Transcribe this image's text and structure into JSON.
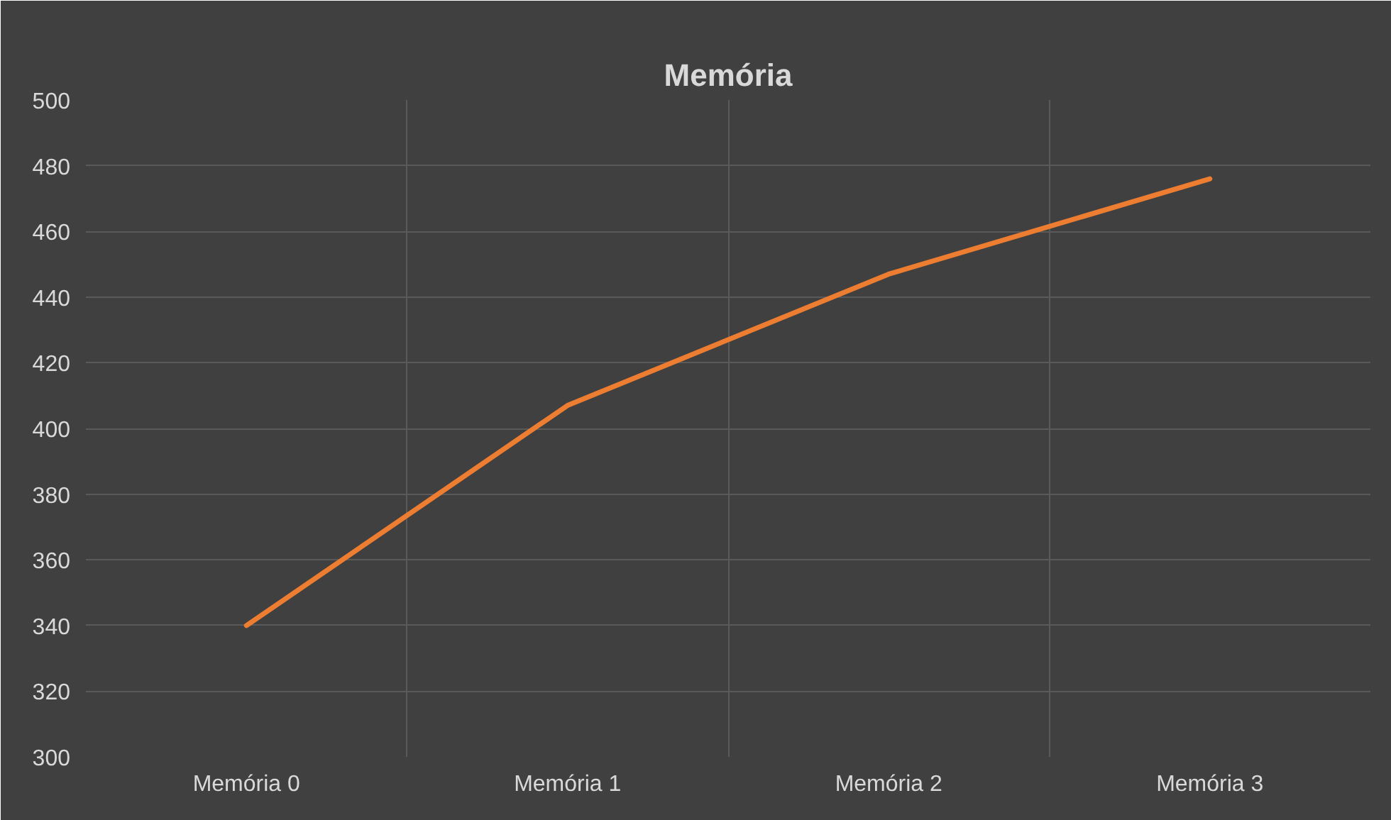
{
  "chart_data": {
    "type": "line",
    "title": "Memória",
    "categories": [
      "Memória 0",
      "Memória 1",
      "Memória 2",
      "Memória 3"
    ],
    "series": [
      {
        "color": "#ed7d31",
        "values": [
          340,
          407,
          447,
          476
        ]
      }
    ],
    "ylim": [
      300,
      500
    ],
    "yticks": [
      300,
      320,
      340,
      360,
      380,
      400,
      420,
      440,
      460,
      480,
      500
    ],
    "grid": true,
    "marker": "none",
    "line_style": "solid"
  }
}
